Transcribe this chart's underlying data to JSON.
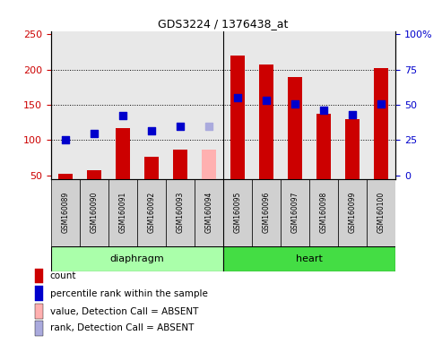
{
  "title": "GDS3224 / 1376438_at",
  "samples": [
    "GSM160089",
    "GSM160090",
    "GSM160091",
    "GSM160092",
    "GSM160093",
    "GSM160094",
    "GSM160095",
    "GSM160096",
    "GSM160097",
    "GSM160098",
    "GSM160099",
    "GSM160100"
  ],
  "count_values": [
    52,
    57,
    117,
    77,
    87,
    null,
    220,
    207,
    190,
    137,
    130,
    202
  ],
  "count_absent": [
    null,
    null,
    null,
    null,
    null,
    87,
    null,
    null,
    null,
    null,
    null,
    null
  ],
  "rank_values": [
    100,
    110,
    135,
    113,
    120,
    null,
    160,
    157,
    151,
    143,
    136,
    151
  ],
  "rank_absent": [
    null,
    null,
    null,
    null,
    null,
    120,
    null,
    null,
    null,
    null,
    null,
    null
  ],
  "n_diaphragm": 6,
  "n_heart": 6,
  "ylim_left": [
    45,
    255
  ],
  "yticks_left": [
    50,
    100,
    150,
    200,
    250
  ],
  "yticks_right_pos": [
    50,
    100,
    150,
    200,
    250
  ],
  "yticks_right_labels": [
    "0",
    "25",
    "50",
    "75",
    "100%"
  ],
  "grid_lines": [
    100,
    150,
    200
  ],
  "bar_color": "#cc0000",
  "bar_absent_color": "#ffb0b0",
  "dot_color": "#0000cc",
  "dot_absent_color": "#aaaadd",
  "plot_bg_color": "#e8e8e8",
  "sample_box_color": "#d0d0d0",
  "tissue_diaphragm_color": "#aaffaa",
  "tissue_heart_color": "#44dd44",
  "bar_width": 0.5,
  "dot_size": 40,
  "left_color": "#cc0000",
  "right_color": "#0000cc",
  "legend_items": [
    {
      "color": "#cc0000",
      "label": "count"
    },
    {
      "color": "#0000cc",
      "label": "percentile rank within the sample"
    },
    {
      "color": "#ffb0b0",
      "label": "value, Detection Call = ABSENT"
    },
    {
      "color": "#aaaadd",
      "label": "rank, Detection Call = ABSENT"
    }
  ]
}
